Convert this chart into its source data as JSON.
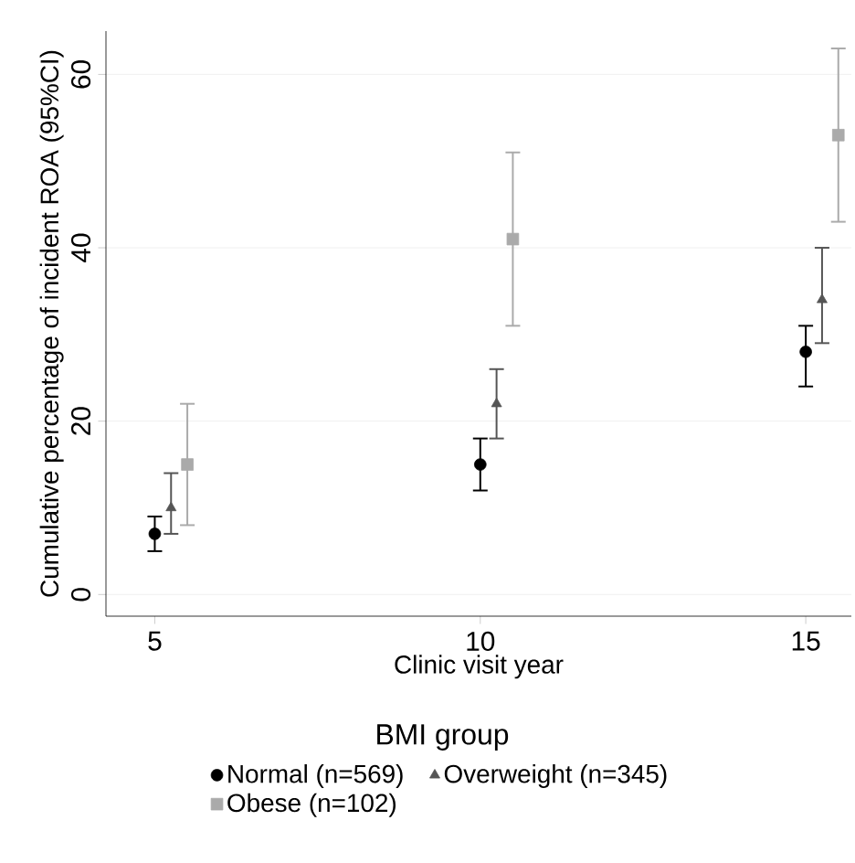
{
  "chart_data": {
    "type": "scatter",
    "xlabel": "Clinic visit year",
    "ylabel": "Cumulative percentage of incident ROA (95%CI)",
    "legend_title": "BMI group",
    "legend": "bottom",
    "grid": "y",
    "xlim": [
      4.25,
      15.7
    ],
    "xticks": [
      5,
      10,
      15
    ],
    "ylim": [
      -2.5,
      65
    ],
    "yticks": [
      0,
      20,
      40,
      60
    ],
    "series": [
      {
        "name": "Normal (n=569)",
        "color": "#000000",
        "marker": "circle",
        "x": [
          5,
          10,
          15
        ],
        "values": [
          7,
          15,
          28
        ],
        "errors": [
          [
            5,
            9
          ],
          [
            12,
            18
          ],
          [
            24,
            31
          ]
        ]
      },
      {
        "name": "Overweight (n=345)",
        "color": "#555555",
        "marker": "triangle",
        "x": [
          5.25,
          10.25,
          15.25
        ],
        "values": [
          10,
          22,
          34
        ],
        "errors": [
          [
            7,
            14
          ],
          [
            18,
            26
          ],
          [
            29,
            40
          ]
        ]
      },
      {
        "name": "Obese (n=102)",
        "color": "#aaaaaa",
        "marker": "square",
        "x": [
          5.5,
          10.5,
          15.5
        ],
        "values": [
          15,
          41,
          53
        ],
        "errors": [
          [
            8,
            22
          ],
          [
            31,
            51
          ],
          [
            43,
            63
          ]
        ]
      }
    ]
  }
}
